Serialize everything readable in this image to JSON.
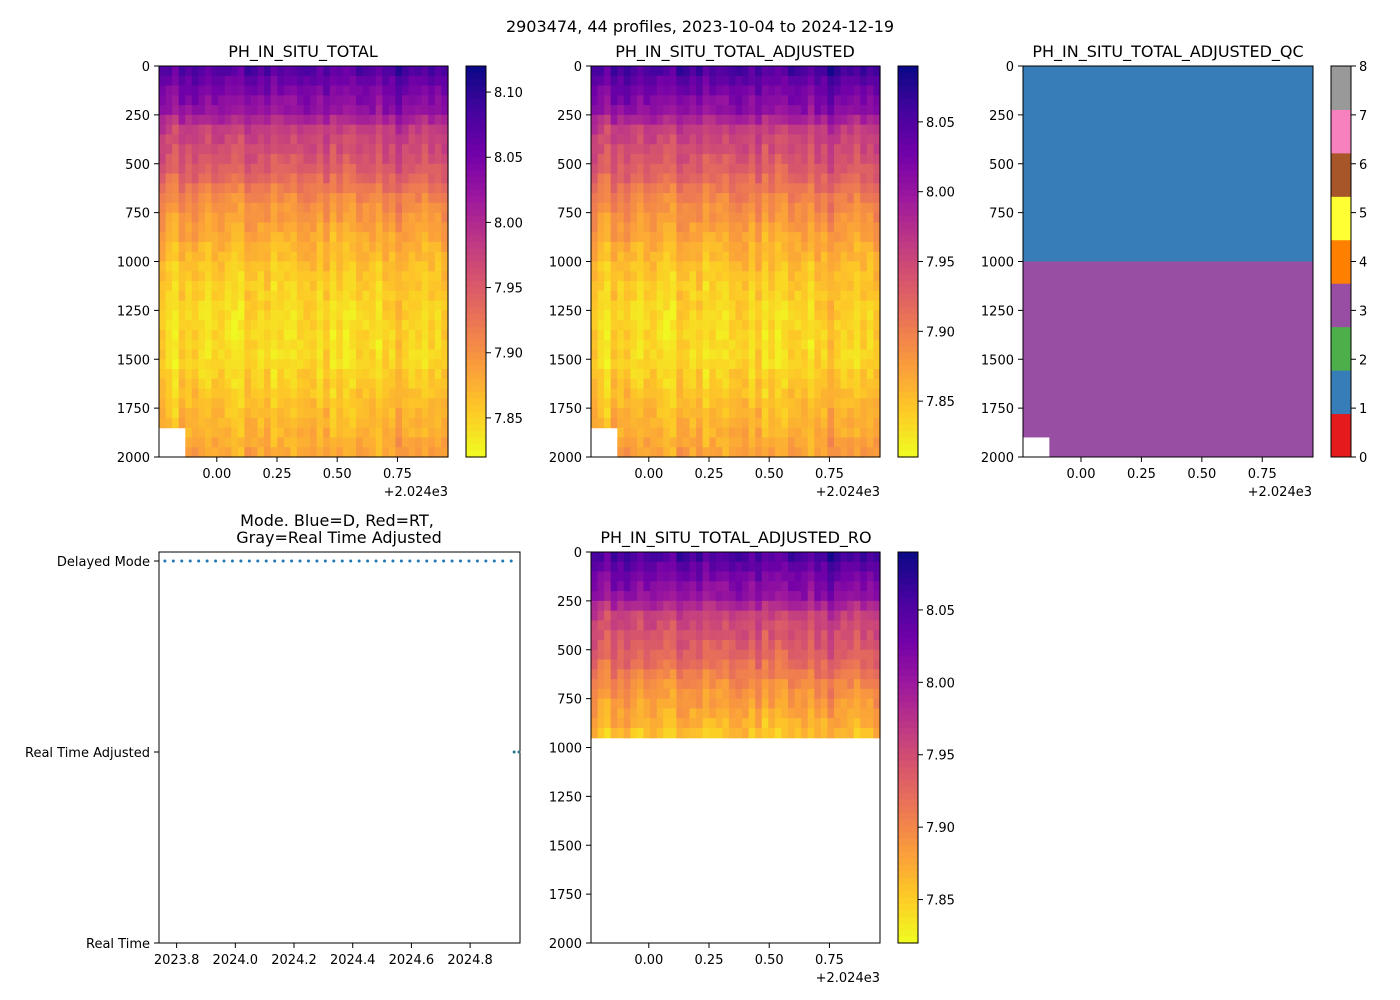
{
  "suptitle": "2903474, 44 profiles, 2023-10-04 to 2024-12-19",
  "colors": {
    "plasma": [
      "#0d0887",
      "#46039f",
      "#7201a8",
      "#9c179e",
      "#bd3786",
      "#d8576b",
      "#ed7953",
      "#fb9f3a",
      "#fdca26",
      "#f0f921"
    ],
    "mode_dot": "#1f77b4",
    "mode_rta_dot": "#2a788e",
    "qc": [
      "#e41a1c",
      "#377eb8",
      "#4daf4a",
      "#984ea3",
      "#ff7f00",
      "#ffff33",
      "#a65628",
      "#f781bf",
      "#999999"
    ]
  },
  "chart_data": [
    {
      "id": "ph_in_situ_total",
      "type": "heatmap",
      "title": "PH_IN_SITU_TOTAL",
      "xlabel": "",
      "ylabel": "",
      "xlim": [
        -0.24,
        0.96
      ],
      "ylim": [
        2000,
        0
      ],
      "xticks": [
        "0.00",
        "0.25",
        "0.50",
        "0.75"
      ],
      "xoffset_label": "+2.024e3",
      "yticks": [
        "0",
        "250",
        "500",
        "750",
        "1000",
        "1250",
        "1500",
        "1750",
        "2000"
      ],
      "clim": [
        7.82,
        8.12
      ],
      "colorbar_ticks": [
        "7.85",
        "7.90",
        "7.95",
        "8.00",
        "8.05",
        "8.10"
      ],
      "colormap": "plasma",
      "depth_profile": [
        [
          0,
          8.08
        ],
        [
          100,
          8.05
        ],
        [
          250,
          8.02
        ],
        [
          300,
          7.98
        ],
        [
          500,
          7.95
        ],
        [
          700,
          7.9
        ],
        [
          900,
          7.87
        ],
        [
          1100,
          7.85
        ],
        [
          1300,
          7.84
        ],
        [
          1500,
          7.84
        ],
        [
          1750,
          7.86
        ],
        [
          2000,
          7.88
        ]
      ],
      "profiles": 44
    },
    {
      "id": "ph_in_situ_total_adjusted",
      "type": "heatmap",
      "title": "PH_IN_SITU_TOTAL_ADJUSTED",
      "xlim": [
        -0.24,
        0.96
      ],
      "ylim": [
        2000,
        0
      ],
      "xticks": [
        "0.00",
        "0.25",
        "0.50",
        "0.75"
      ],
      "xoffset_label": "+2.024e3",
      "yticks": [
        "0",
        "250",
        "500",
        "750",
        "1000",
        "1250",
        "1500",
        "1750",
        "2000"
      ],
      "clim": [
        7.81,
        8.09
      ],
      "colorbar_ticks": [
        "7.85",
        "7.90",
        "7.95",
        "8.00",
        "8.05"
      ],
      "colormap": "plasma",
      "depth_profile": [
        [
          0,
          8.06
        ],
        [
          100,
          8.03
        ],
        [
          250,
          8.0
        ],
        [
          300,
          7.96
        ],
        [
          500,
          7.93
        ],
        [
          700,
          7.89
        ],
        [
          900,
          7.86
        ],
        [
          1100,
          7.84
        ],
        [
          1300,
          7.83
        ],
        [
          1500,
          7.83
        ],
        [
          1750,
          7.85
        ],
        [
          2000,
          7.87
        ]
      ],
      "profiles": 44
    },
    {
      "id": "ph_in_situ_total_adjusted_qc",
      "type": "heatmap",
      "title": "PH_IN_SITU_TOTAL_ADJUSTED_QC",
      "xlim": [
        -0.24,
        0.96
      ],
      "ylim": [
        2000,
        0
      ],
      "xticks": [
        "0.00",
        "0.25",
        "0.50",
        "0.75"
      ],
      "xoffset_label": "+2.024e3",
      "yticks": [
        "0",
        "250",
        "500",
        "750",
        "1000",
        "1250",
        "1500",
        "1750",
        "2000"
      ],
      "qc_bands": [
        {
          "from": 0,
          "to": 1000,
          "flag": 1
        },
        {
          "from": 1000,
          "to": 2000,
          "flag": 3
        }
      ],
      "colorbar_ticks": [
        "0",
        "1",
        "2",
        "3",
        "4",
        "5",
        "6",
        "7",
        "8"
      ]
    },
    {
      "id": "mode",
      "type": "scatter",
      "title_line1": "Mode. Blue=D, Red=RT,",
      "title_line2": "Gray=Real Time Adjusted",
      "xlim": [
        2023.74,
        2024.97
      ],
      "xticks": [
        "2023.8",
        "2024.0",
        "2024.2",
        "2024.4",
        "2024.6",
        "2024.8"
      ],
      "yticks": [
        "Delayed Mode",
        "Real Time Adjusted",
        "Real Time"
      ],
      "series": [
        {
          "name": "Delayed Mode",
          "level": 2,
          "x_start": 2023.76,
          "x_end": 2024.94,
          "count": 42
        },
        {
          "name": "Real Time Adjusted",
          "level": 1,
          "x": [
            2024.95,
            2024.97
          ]
        }
      ]
    },
    {
      "id": "ph_in_situ_total_adjusted_ro",
      "type": "heatmap",
      "title": "PH_IN_SITU_TOTAL_ADJUSTED_RO",
      "xlim": [
        -0.24,
        0.96
      ],
      "ylim": [
        2000,
        0
      ],
      "xticks": [
        "0.00",
        "0.25",
        "0.50",
        "0.75"
      ],
      "xoffset_label": "+2.024e3",
      "yticks": [
        "0",
        "250",
        "500",
        "750",
        "1000",
        "1250",
        "1500",
        "1750",
        "2000"
      ],
      "clim": [
        7.82,
        8.09
      ],
      "colorbar_ticks": [
        "7.85",
        "7.90",
        "7.95",
        "8.00",
        "8.05"
      ],
      "colormap": "plasma",
      "data_max_depth": 950,
      "depth_profile": [
        [
          0,
          8.06
        ],
        [
          100,
          8.03
        ],
        [
          250,
          8.0
        ],
        [
          300,
          7.96
        ],
        [
          500,
          7.93
        ],
        [
          700,
          7.89
        ],
        [
          900,
          7.86
        ],
        [
          950,
          7.85
        ]
      ],
      "profiles": 44
    }
  ]
}
